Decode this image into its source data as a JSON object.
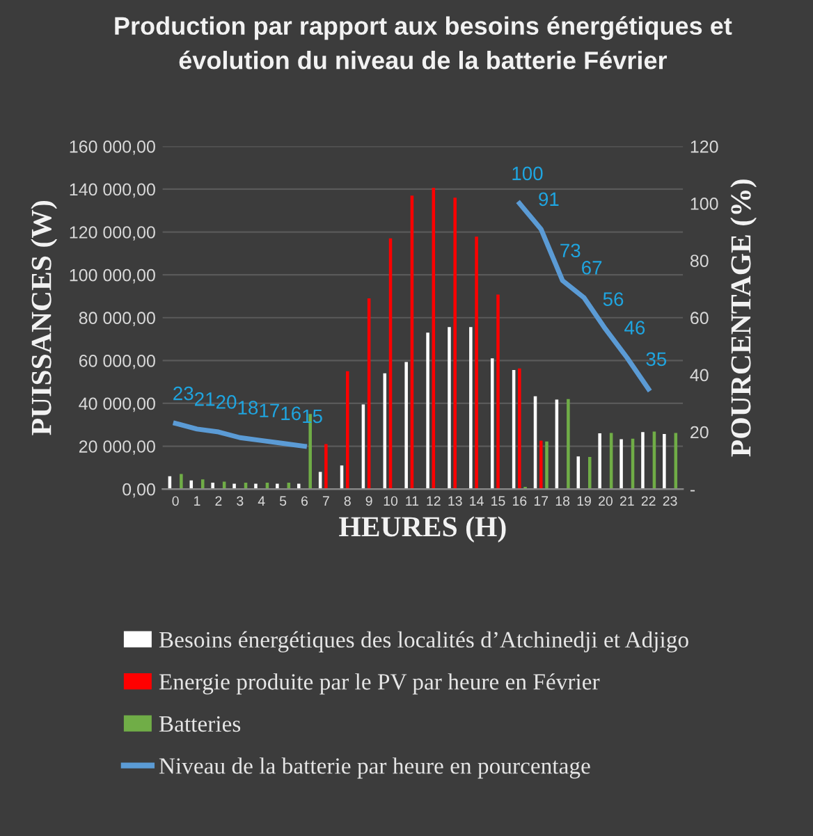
{
  "chart_data": {
    "type": "bar",
    "title": "Production par rapport aux besoins énergétiques et\névolution du niveau de la batterie Février",
    "xlabel": "HEURES (H)",
    "ylabel": "PUISSANCES (W)",
    "y2label": "POURCENTAGE (%)",
    "categories": [
      "0",
      "1",
      "2",
      "3",
      "4",
      "5",
      "6",
      "7",
      "8",
      "9",
      "10",
      "11",
      "12",
      "13",
      "14",
      "15",
      "16",
      "17",
      "18",
      "19",
      "20",
      "21",
      "22",
      "23"
    ],
    "series": [
      {
        "name": "Besoins énergétiques des localités d’Atchinedji et Adjigo",
        "color": "#ffffff",
        "values": [
          6000,
          4000,
          3000,
          2500,
          2500,
          2500,
          2500,
          8000,
          11000,
          39500,
          54000,
          59300,
          73000,
          75600,
          75600,
          61000,
          55600,
          43300,
          41800,
          15200,
          26000,
          23300,
          26600,
          25700
        ]
      },
      {
        "name": "Energie produite par le PV par heure en Février",
        "color": "#ff0000",
        "values": [
          0,
          0,
          0,
          0,
          0,
          0,
          0,
          21000,
          55000,
          89000,
          117000,
          137000,
          140600,
          136000,
          117800,
          90800,
          56300,
          22600,
          0,
          0,
          0,
          0,
          0,
          0
        ]
      },
      {
        "name": "Batteries",
        "color": "#70ad47",
        "values": [
          7000,
          4500,
          3500,
          3000,
          3000,
          3000,
          35000,
          0,
          0,
          0,
          0,
          0,
          0,
          0,
          0,
          0,
          1000,
          22200,
          42000,
          15000,
          26200,
          23500,
          26800,
          26200
        ]
      },
      {
        "name": "Niveau de la batterie par heure en pourcentage",
        "type": "line",
        "axis": "y2",
        "color": "#5b9bd5",
        "line_style": "solid",
        "marker": "none",
        "values": [
          23,
          21,
          20,
          18,
          17,
          16,
          15,
          null,
          null,
          null,
          null,
          null,
          null,
          null,
          null,
          null,
          100,
          91,
          73,
          67,
          56,
          46,
          35,
          null
        ],
        "value_labels": [
          "23",
          "21",
          "20",
          "18",
          "17",
          "16",
          "15",
          null,
          null,
          null,
          null,
          null,
          null,
          null,
          null,
          null,
          "100",
          "91",
          "73",
          "67",
          "56",
          "46",
          "35",
          null
        ]
      }
    ],
    "ylim": [
      0,
      160000
    ],
    "yticks": [
      {
        "value": 0,
        "label": "0,00"
      },
      {
        "value": 20000,
        "label": "20 000,00"
      },
      {
        "value": 40000,
        "label": "40 000,00"
      },
      {
        "value": 60000,
        "label": "60 000,00"
      },
      {
        "value": 80000,
        "label": "80 000,00"
      },
      {
        "value": 100000,
        "label": "100 000,00"
      },
      {
        "value": 120000,
        "label": "120 000,00"
      },
      {
        "value": 140000,
        "label": "140 000,00"
      },
      {
        "value": 160000,
        "label": "160 000,00"
      }
    ],
    "y2lim": [
      0,
      120
    ],
    "y2ticks": [
      {
        "value": 0,
        "label": "-"
      },
      20,
      40,
      60,
      80,
      100,
      120
    ],
    "grid": "y",
    "legend": "bottom"
  }
}
